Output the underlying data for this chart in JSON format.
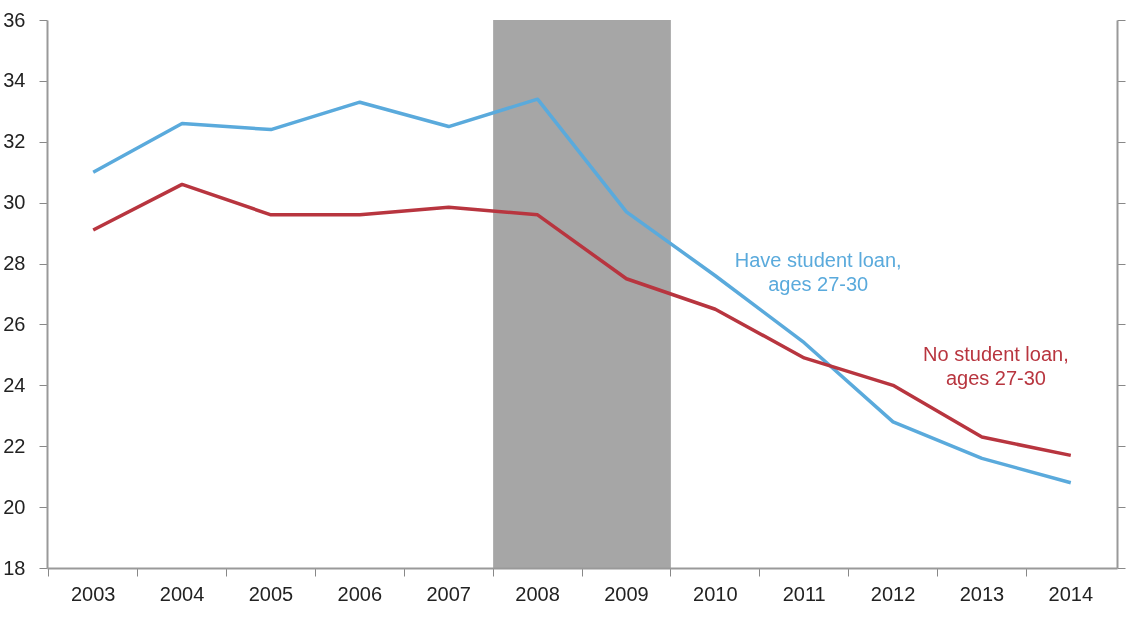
{
  "chart_data": {
    "type": "line",
    "categories": [
      "2003",
      "2004",
      "2005",
      "2006",
      "2007",
      "2008",
      "2009",
      "2010",
      "2011",
      "2012",
      "2013",
      "2014"
    ],
    "series": [
      {
        "name": "Have student loan,\nages 27-30",
        "color": "#5aaadc",
        "values": [
          31.0,
          32.6,
          32.4,
          33.3,
          32.5,
          33.4,
          29.7,
          27.6,
          25.4,
          22.8,
          21.6,
          20.8
        ]
      },
      {
        "name": "No student loan,\nages 27-30",
        "color": "#b8353f",
        "values": [
          29.1,
          30.6,
          29.6,
          29.6,
          29.85,
          29.6,
          27.5,
          26.5,
          24.9,
          24.0,
          22.3,
          21.7
        ]
      }
    ],
    "ylim": [
      18,
      36
    ],
    "yticks": [
      18,
      20,
      22,
      24,
      26,
      28,
      30,
      32,
      34,
      36
    ],
    "bands": [
      {
        "axis": "x",
        "from": "2008",
        "to": "2009",
        "color": "#a6a6a6"
      }
    ],
    "grid": false,
    "marker": "none",
    "line_style": "solid"
  }
}
